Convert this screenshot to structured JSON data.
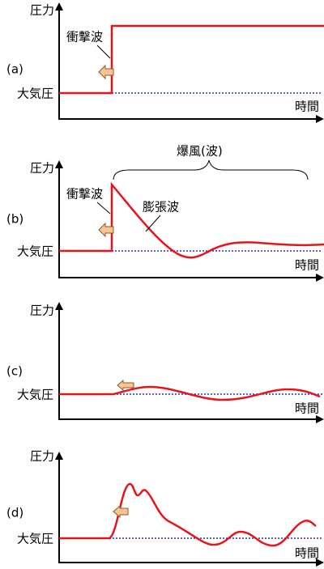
{
  "panels": [
    {
      "label": "(a)",
      "y_axis_label": "圧力",
      "baseline_label": "大気圧",
      "x_axis_label": "時間",
      "shock_label": "衝撃波"
    },
    {
      "label": "(b)",
      "y_axis_label": "圧力",
      "baseline_label": "大気圧",
      "x_axis_label": "時間",
      "shock_label": "衝撃波",
      "expansion_label": "膨張波",
      "blast_label": "爆風(波)"
    },
    {
      "label": "(c)",
      "y_axis_label": "圧力",
      "baseline_label": "大気圧",
      "x_axis_label": "時間"
    },
    {
      "label": "(d)",
      "y_axis_label": "圧力",
      "baseline_label": "大気圧",
      "x_axis_label": "時間"
    }
  ]
}
